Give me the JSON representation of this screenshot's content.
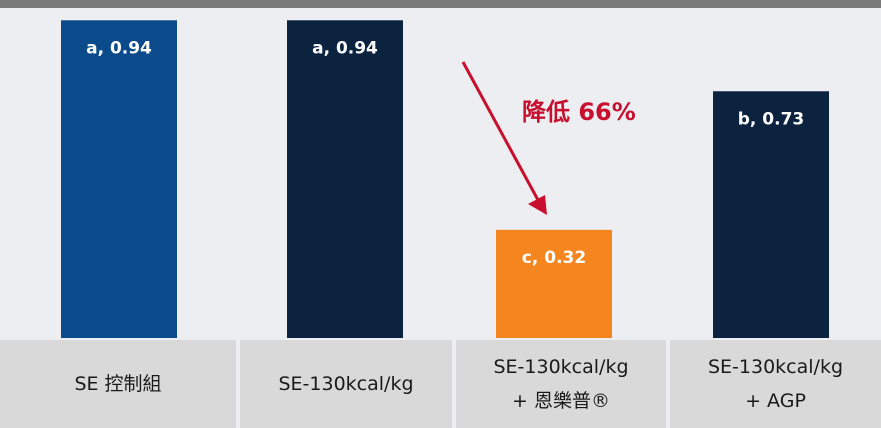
{
  "chart_data": {
    "type": "bar",
    "categories": [
      "SE 控制組",
      "SE-130kcal/kg",
      "SE-130kcal/kg\n+ 恩樂普®",
      "SE-130kcal/kg\n+ AGP"
    ],
    "values": [
      0.94,
      0.94,
      0.32,
      0.73
    ],
    "value_labels": [
      "a, 0.94",
      "a, 0.94",
      "c, 0.32",
      "b, 0.73"
    ],
    "colors": [
      "#0b4a8b",
      "#0c2340",
      "#f5861f",
      "#0c2340"
    ],
    "ylim": [
      0,
      1
    ],
    "annotation": "降低 66%",
    "annotation_color": "#c8102e"
  }
}
